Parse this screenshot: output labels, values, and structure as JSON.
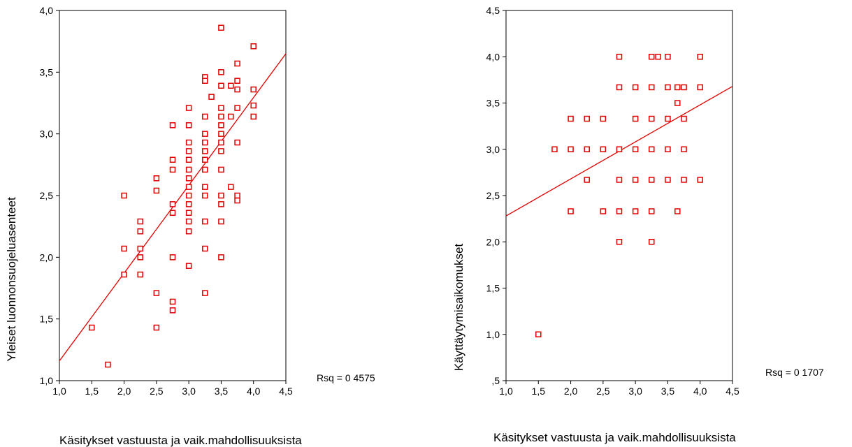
{
  "chart_data": [
    {
      "type": "scatter",
      "xlabel": "Käsitykset vastuusta ja vaik.mahdollisuuksista",
      "ylabel": "Yleiset luonnonsuojeluasenteet",
      "xlim": [
        1.0,
        4.5
      ],
      "ylim": [
        1.0,
        4.0
      ],
      "x_ticks": [
        "1,0",
        "1,5",
        "2,0",
        "2,5",
        "3,0",
        "3,5",
        "4,0",
        "4,5"
      ],
      "y_ticks": [
        "1,0",
        "1,5",
        "2,0",
        "2,5",
        "3,0",
        "3,5",
        "4,0"
      ],
      "grid": false,
      "fit_line": {
        "x": [
          1.0,
          4.5
        ],
        "y": [
          1.16,
          3.65
        ]
      },
      "annotation": "Rsq = 0 4575",
      "marker_color": "#e00000",
      "points": [
        [
          1.5,
          1.43
        ],
        [
          1.75,
          1.13
        ],
        [
          2.0,
          2.5
        ],
        [
          2.0,
          2.07
        ],
        [
          2.0,
          1.86
        ],
        [
          2.25,
          2.29
        ],
        [
          2.25,
          2.21
        ],
        [
          2.25,
          2.07
        ],
        [
          2.25,
          2.0
        ],
        [
          2.25,
          1.86
        ],
        [
          2.5,
          2.64
        ],
        [
          2.5,
          2.54
        ],
        [
          2.5,
          1.71
        ],
        [
          2.5,
          1.43
        ],
        [
          2.75,
          3.07
        ],
        [
          2.75,
          2.79
        ],
        [
          2.75,
          2.71
        ],
        [
          2.75,
          2.43
        ],
        [
          2.75,
          2.36
        ],
        [
          2.75,
          2.0
        ],
        [
          2.75,
          1.64
        ],
        [
          2.75,
          1.57
        ],
        [
          3.0,
          3.21
        ],
        [
          3.0,
          3.07
        ],
        [
          3.0,
          2.93
        ],
        [
          3.0,
          2.86
        ],
        [
          3.0,
          2.79
        ],
        [
          3.0,
          2.71
        ],
        [
          3.0,
          2.64
        ],
        [
          3.0,
          2.57
        ],
        [
          3.0,
          2.5
        ],
        [
          3.0,
          2.43
        ],
        [
          3.0,
          2.36
        ],
        [
          3.0,
          2.29
        ],
        [
          3.0,
          2.21
        ],
        [
          3.0,
          1.93
        ],
        [
          3.25,
          3.46
        ],
        [
          3.25,
          3.43
        ],
        [
          3.25,
          3.14
        ],
        [
          3.25,
          3.0
        ],
        [
          3.25,
          2.93
        ],
        [
          3.25,
          2.86
        ],
        [
          3.25,
          2.79
        ],
        [
          3.25,
          2.71
        ],
        [
          3.25,
          2.57
        ],
        [
          3.25,
          2.5
        ],
        [
          3.25,
          2.29
        ],
        [
          3.25,
          2.07
        ],
        [
          3.25,
          1.71
        ],
        [
          3.35,
          3.3
        ],
        [
          3.5,
          3.86
        ],
        [
          3.5,
          3.5
        ],
        [
          3.5,
          3.39
        ],
        [
          3.5,
          3.21
        ],
        [
          3.5,
          3.14
        ],
        [
          3.5,
          3.07
        ],
        [
          3.5,
          3.0
        ],
        [
          3.5,
          2.93
        ],
        [
          3.5,
          2.86
        ],
        [
          3.5,
          2.71
        ],
        [
          3.5,
          2.5
        ],
        [
          3.5,
          2.43
        ],
        [
          3.5,
          2.29
        ],
        [
          3.5,
          2.0
        ],
        [
          3.65,
          3.39
        ],
        [
          3.65,
          3.14
        ],
        [
          3.65,
          2.57
        ],
        [
          3.75,
          3.57
        ],
        [
          3.75,
          3.43
        ],
        [
          3.75,
          3.36
        ],
        [
          3.75,
          3.21
        ],
        [
          3.75,
          2.93
        ],
        [
          3.75,
          2.5
        ],
        [
          3.75,
          2.46
        ],
        [
          4.0,
          3.71
        ],
        [
          4.0,
          3.36
        ],
        [
          4.0,
          3.23
        ],
        [
          4.0,
          3.14
        ]
      ]
    },
    {
      "type": "scatter",
      "xlabel": "Käsitykset vastuusta ja vaik.mahdollisuuksista",
      "ylabel": "Käyttäytymisaikomukset",
      "xlim": [
        1.0,
        4.5
      ],
      "ylim": [
        0.5,
        4.5
      ],
      "x_ticks": [
        "1,0",
        "1,5",
        "2,0",
        "2,5",
        "3,0",
        "3,5",
        "4,0",
        "4,5"
      ],
      "y_ticks": [
        ",5",
        "1,0",
        "1,5",
        "2,0",
        "2,5",
        "3,0",
        "3,5",
        "4,0",
        "4,5"
      ],
      "grid": false,
      "fit_line": {
        "x": [
          1.0,
          4.5
        ],
        "y": [
          2.28,
          3.68
        ]
      },
      "annotation": "Rsq = 0 1707",
      "marker_color": "#e00000",
      "points": [
        [
          1.5,
          1.0
        ],
        [
          1.75,
          3.0
        ],
        [
          2.0,
          3.33
        ],
        [
          2.0,
          3.0
        ],
        [
          2.0,
          2.33
        ],
        [
          2.25,
          3.33
        ],
        [
          2.25,
          3.0
        ],
        [
          2.25,
          2.67
        ],
        [
          2.5,
          3.33
        ],
        [
          2.5,
          3.0
        ],
        [
          2.5,
          2.33
        ],
        [
          2.75,
          4.0
        ],
        [
          2.75,
          3.67
        ],
        [
          2.75,
          3.0
        ],
        [
          2.75,
          2.67
        ],
        [
          2.75,
          2.33
        ],
        [
          2.75,
          2.0
        ],
        [
          3.0,
          3.67
        ],
        [
          3.0,
          3.33
        ],
        [
          3.0,
          3.0
        ],
        [
          3.0,
          2.67
        ],
        [
          3.0,
          2.33
        ],
        [
          3.25,
          4.0
        ],
        [
          3.25,
          3.67
        ],
        [
          3.25,
          3.33
        ],
        [
          3.25,
          3.0
        ],
        [
          3.25,
          2.67
        ],
        [
          3.25,
          2.33
        ],
        [
          3.25,
          2.0
        ],
        [
          3.35,
          4.0
        ],
        [
          3.5,
          4.0
        ],
        [
          3.5,
          3.67
        ],
        [
          3.5,
          3.33
        ],
        [
          3.5,
          3.0
        ],
        [
          3.5,
          2.67
        ],
        [
          3.65,
          3.67
        ],
        [
          3.65,
          3.5
        ],
        [
          3.65,
          2.33
        ],
        [
          3.75,
          3.67
        ],
        [
          3.75,
          3.33
        ],
        [
          3.75,
          3.0
        ],
        [
          3.75,
          2.67
        ],
        [
          4.0,
          4.0
        ],
        [
          4.0,
          3.67
        ],
        [
          4.0,
          2.67
        ]
      ]
    }
  ]
}
